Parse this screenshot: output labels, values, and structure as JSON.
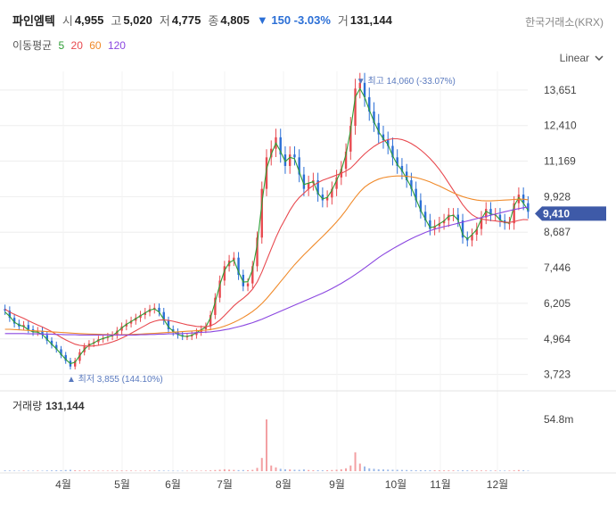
{
  "header": {
    "name": "파인엠텍",
    "open_label": "시",
    "open": "4,955",
    "high_label": "고",
    "high": "5,020",
    "low_label": "저",
    "low": "4,775",
    "close_label": "종",
    "close": "4,805",
    "change": "▼ 150 -3.03%",
    "volume_label": "거",
    "volume": "131,144",
    "exchange": "한국거래소(KRX)"
  },
  "ma_legend": {
    "label": "이동평균",
    "items": [
      {
        "period": "5",
        "color": "#2e9e35"
      },
      {
        "period": "20",
        "color": "#e8494f"
      },
      {
        "period": "60",
        "color": "#f08a2a"
      },
      {
        "period": "120",
        "color": "#8b47e0"
      }
    ]
  },
  "scale_mode": "Linear",
  "volume_panel": {
    "label": "거래량",
    "value": "131,144",
    "tick": "54.8m"
  },
  "current_price": "9,410",
  "annotations": {
    "max": "▼ 최고 14,060 (-33.07%)",
    "min": "▲ 최저 3,855 (144.10%)"
  },
  "colors": {
    "up": "#e8494f",
    "down": "#2b6fd6",
    "current": "#3e5aa8",
    "grid": "#eeeeee"
  },
  "chart_data": {
    "type": "candlestick",
    "x_axis_labels": [
      "4월",
      "5월",
      "6월",
      "7월",
      "8월",
      "9월",
      "10월",
      "11월",
      "12월"
    ],
    "y_axis_ticks": [
      3723,
      4964,
      6205,
      7446,
      8687,
      9928,
      11169,
      12410,
      13651
    ],
    "ylim": [
      3400,
      14300
    ],
    "close_path": [
      5950,
      5700,
      5500,
      5400,
      5450,
      5300,
      5200,
      5250,
      5100,
      4900,
      4750,
      4600,
      4400,
      4200,
      4000,
      4200,
      4500,
      4700,
      4800,
      4850,
      4950,
      5000,
      5050,
      5100,
      5250,
      5400,
      5500,
      5600,
      5700,
      5800,
      5900,
      6000,
      6050,
      5900,
      5600,
      5300,
      5200,
      5100,
      5050,
      5050,
      5100,
      5200,
      5300,
      5400,
      5800,
      6400,
      7000,
      7500,
      7700,
      7800,
      7200,
      6800,
      6900,
      7500,
      8500,
      10200,
      11300,
      11600,
      12000,
      11400,
      11000,
      11400,
      11300,
      10700,
      10200,
      10400,
      10500,
      10000,
      9800,
      9900,
      10200,
      10600,
      10900,
      11500,
      12400,
      13700,
      13900,
      13400,
      12900,
      12500,
      12100,
      11900,
      11700,
      11300,
      11000,
      10800,
      10500,
      10200,
      9800,
      9400,
      9100,
      8800,
      8900,
      9000,
      9100,
      9300,
      9300,
      9100,
      8500,
      8400,
      8600,
      8800,
      9200,
      9500,
      9300,
      9300,
      9100,
      9000,
      9000,
      9700,
      10000,
      9700,
      9400
    ],
    "ma_values": {
      "5": [
        5900,
        5750,
        5550,
        5450,
        5400,
        5280,
        5210,
        5200,
        5120,
        4950,
        4780,
        4620,
        4430,
        4250,
        4100,
        4150,
        4380,
        4600,
        4750,
        4820,
        4920,
        4980,
        5030,
        5080,
        5200,
        5350,
        5470,
        5570,
        5670,
        5770,
        5870,
        5970,
        6010,
        5900,
        5650,
        5380,
        5230,
        5120,
        5060,
        5050,
        5090,
        5180,
        5280,
        5380,
        5700,
        6250,
        6850,
        7350,
        7620,
        7720,
        7300,
        6950,
        6960,
        7380,
        8250,
        9700,
        10900,
        11400,
        11800,
        11500,
        11150,
        11300,
        11250,
        10800,
        10350,
        10400,
        10450,
        10050,
        9850,
        9900,
        10150,
        10500,
        10850,
        11400,
        12250,
        13400,
        13700,
        13400,
        12950,
        12550,
        12200,
        11950,
        11750,
        11350,
        11050,
        10850,
        10550,
        10250,
        9850,
        9450,
        9150,
        8850,
        8880,
        8980,
        9080,
        9250,
        9280,
        9120,
        8600,
        8450,
        8600,
        8780,
        9150,
        9420,
        9320,
        9300,
        9120,
        9020,
        9010,
        9600,
        9900,
        9700,
        9450
      ],
      "20": [
        6000,
        5900,
        5820,
        5750,
        5680,
        5600,
        5520,
        5450,
        5380,
        5300,
        5220,
        5120,
        5020,
        4930,
        4850,
        4780,
        4740,
        4720,
        4710,
        4720,
        4740,
        4770,
        4810,
        4860,
        4920,
        4990,
        5070,
        5160,
        5250,
        5340,
        5430,
        5520,
        5580,
        5620,
        5630,
        5610,
        5580,
        5540,
        5500,
        5460,
        5430,
        5400,
        5390,
        5390,
        5420,
        5500,
        5620,
        5780,
        5950,
        6120,
        6260,
        6380,
        6520,
        6700,
        6950,
        7300,
        7700,
        8100,
        8500,
        8850,
        9150,
        9450,
        9700,
        9900,
        10050,
        10200,
        10320,
        10420,
        10500,
        10560,
        10620,
        10680,
        10740,
        10820,
        10920,
        11080,
        11260,
        11420,
        11560,
        11680,
        11780,
        11860,
        11920,
        11950,
        11950,
        11920,
        11860,
        11780,
        11680,
        11560,
        11420,
        11260,
        11080,
        10880,
        10650,
        10400,
        10150,
        9900,
        9650,
        9450,
        9300,
        9200,
        9150,
        9120,
        9100,
        9080,
        9060,
        9040,
        9030,
        9060,
        9100,
        9130,
        9120
      ],
      "60": [
        5300,
        5300,
        5290,
        5280,
        5270,
        5260,
        5250,
        5240,
        5230,
        5220,
        5210,
        5200,
        5190,
        5180,
        5170,
        5160,
        5150,
        5140,
        5135,
        5130,
        5125,
        5120,
        5115,
        5110,
        5110,
        5110,
        5115,
        5120,
        5125,
        5130,
        5140,
        5150,
        5160,
        5170,
        5180,
        5190,
        5200,
        5210,
        5220,
        5230,
        5240,
        5250,
        5260,
        5270,
        5290,
        5320,
        5360,
        5410,
        5470,
        5540,
        5620,
        5710,
        5810,
        5920,
        6050,
        6200,
        6370,
        6560,
        6760,
        6960,
        7160,
        7360,
        7550,
        7730,
        7900,
        8060,
        8220,
        8380,
        8540,
        8700,
        8870,
        9050,
        9240,
        9450,
        9680,
        9900,
        10100,
        10260,
        10380,
        10470,
        10540,
        10590,
        10620,
        10640,
        10650,
        10650,
        10640,
        10620,
        10590,
        10550,
        10500,
        10440,
        10370,
        10300,
        10220,
        10140,
        10060,
        9990,
        9930,
        9880,
        9840,
        9810,
        9790,
        9780,
        9780,
        9790,
        9800,
        9810,
        9820,
        9830,
        9840,
        9840,
        9820
      ],
      "120": [
        5150,
        5150,
        5150,
        5150,
        5150,
        5140,
        5140,
        5140,
        5130,
        5130,
        5130,
        5120,
        5120,
        5110,
        5110,
        5110,
        5100,
        5100,
        5100,
        5100,
        5100,
        5100,
        5100,
        5100,
        5100,
        5100,
        5100,
        5100,
        5100,
        5110,
        5110,
        5120,
        5120,
        5130,
        5130,
        5140,
        5140,
        5150,
        5150,
        5160,
        5170,
        5180,
        5190,
        5200,
        5210,
        5230,
        5250,
        5280,
        5310,
        5350,
        5390,
        5430,
        5480,
        5530,
        5590,
        5650,
        5720,
        5790,
        5860,
        5930,
        6000,
        6070,
        6140,
        6210,
        6280,
        6350,
        6420,
        6490,
        6560,
        6640,
        6720,
        6810,
        6900,
        7000,
        7100,
        7210,
        7320,
        7440,
        7560,
        7680,
        7800,
        7910,
        8010,
        8110,
        8200,
        8290,
        8380,
        8460,
        8540,
        8610,
        8680,
        8740,
        8790,
        8840,
        8880,
        8920,
        8960,
        9000,
        9040,
        9080,
        9120,
        9160,
        9200,
        9240,
        9280,
        9320,
        9360,
        9400,
        9440,
        9480,
        9510,
        9540,
        9560
      ]
    },
    "volume_values": [
      0.8,
      0.7,
      0.6,
      0.5,
      0.6,
      0.5,
      0.5,
      0.6,
      0.5,
      0.7,
      0.8,
      0.9,
      1.0,
      1.2,
      1.4,
      1.0,
      0.8,
      0.7,
      0.6,
      0.6,
      0.5,
      0.5,
      0.5,
      0.6,
      0.6,
      0.7,
      0.6,
      0.6,
      0.5,
      0.5,
      0.5,
      0.6,
      0.6,
      0.7,
      0.6,
      0.5,
      0.5,
      0.4,
      0.4,
      0.4,
      0.5,
      0.5,
      0.5,
      0.6,
      0.8,
      1.2,
      1.5,
      2.0,
      1.6,
      1.3,
      1.1,
      1.2,
      1.0,
      1.4,
      3.5,
      14.0,
      54.8,
      6.0,
      4.0,
      2.5,
      2.0,
      1.8,
      1.5,
      1.4,
      1.8,
      1.2,
      1.0,
      1.0,
      0.9,
      1.0,
      1.2,
      1.5,
      2.0,
      3.0,
      6.0,
      20.0,
      8.0,
      5.0,
      3.0,
      2.5,
      2.0,
      1.8,
      1.6,
      1.5,
      1.4,
      1.3,
      1.2,
      1.1,
      1.0,
      1.0,
      0.9,
      0.9,
      0.9,
      0.8,
      0.8,
      0.8,
      0.8,
      0.7,
      0.9,
      0.8,
      0.8,
      0.7,
      0.7,
      0.7,
      0.7,
      0.7,
      0.6,
      0.6,
      0.6,
      0.8,
      1.2,
      0.9,
      0.5
    ]
  }
}
